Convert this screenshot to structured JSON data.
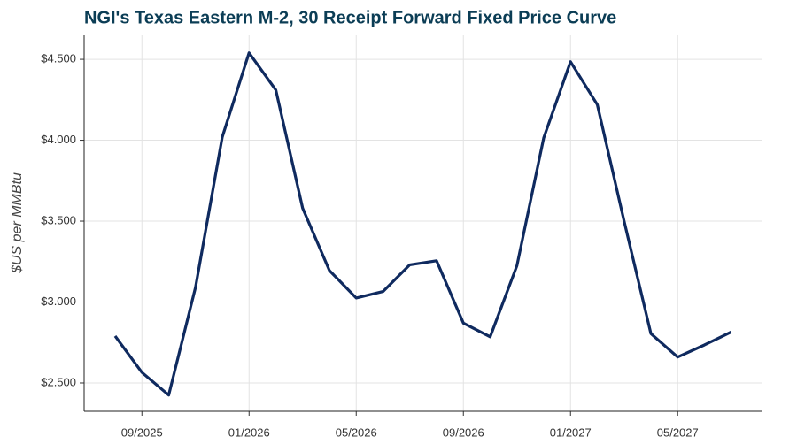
{
  "chart_data": {
    "type": "line",
    "title": "NGI's Texas Eastern M-2, 30 Receipt Forward Fixed Price Curve",
    "y_label": "$US per MMBtu",
    "x": [
      "08/2025",
      "09/2025",
      "10/2025",
      "11/2025",
      "12/2025",
      "01/2026",
      "02/2026",
      "03/2026",
      "04/2026",
      "05/2026",
      "06/2026",
      "07/2026",
      "08/2026",
      "09/2026",
      "10/2026",
      "11/2026",
      "12/2026",
      "01/2027",
      "02/2027",
      "03/2027",
      "04/2027",
      "05/2027",
      "06/2027",
      "07/2027"
    ],
    "series": [
      {
        "name": "Fixed Price",
        "color": "#0f2a5f",
        "values": [
          2.79,
          2.565,
          2.425,
          3.09,
          4.02,
          4.54,
          4.31,
          3.58,
          3.195,
          3.025,
          3.065,
          3.23,
          3.255,
          2.87,
          2.785,
          3.225,
          4.015,
          4.485,
          4.22,
          3.5,
          2.805,
          2.66,
          2.735,
          2.815
        ]
      }
    ],
    "xticks": [
      "09/2025",
      "01/2026",
      "05/2026",
      "09/2026",
      "01/2027",
      "05/2027"
    ],
    "ylim": [
      2.325,
      4.648
    ],
    "yticks": [
      {
        "value": 2.5,
        "label": "$2.500"
      },
      {
        "value": 3.0,
        "label": "$3.000"
      },
      {
        "value": 3.5,
        "label": "$3.500"
      },
      {
        "value": 4.0,
        "label": "$4.000"
      },
      {
        "value": 4.5,
        "label": "$4.500"
      }
    ],
    "grid": true
  }
}
